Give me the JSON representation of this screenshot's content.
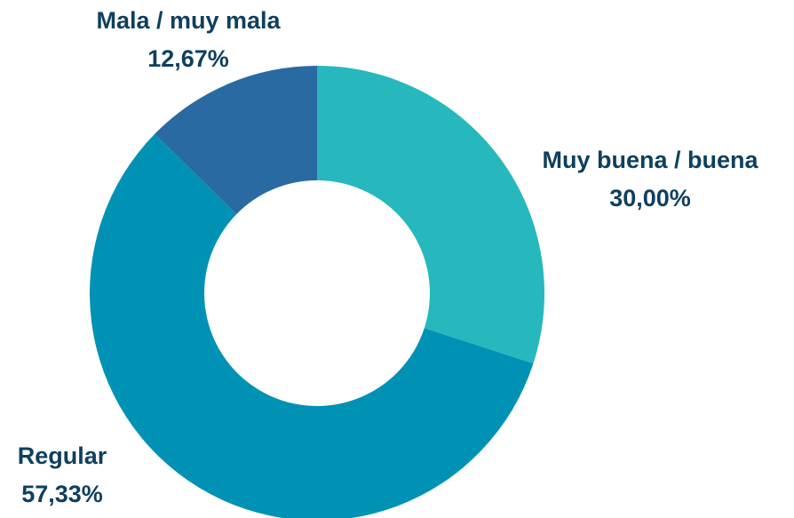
{
  "chart_data": {
    "type": "donut",
    "categories": [
      "Muy buena / buena",
      "Regular",
      "Mala / muy mala"
    ],
    "values": [
      30.0,
      57.33,
      12.67
    ],
    "value_labels": [
      "30,00%",
      "57,33%",
      "12,67%"
    ],
    "colors": [
      "#26b8bc",
      "#0092b5",
      "#2a6aa3"
    ]
  }
}
